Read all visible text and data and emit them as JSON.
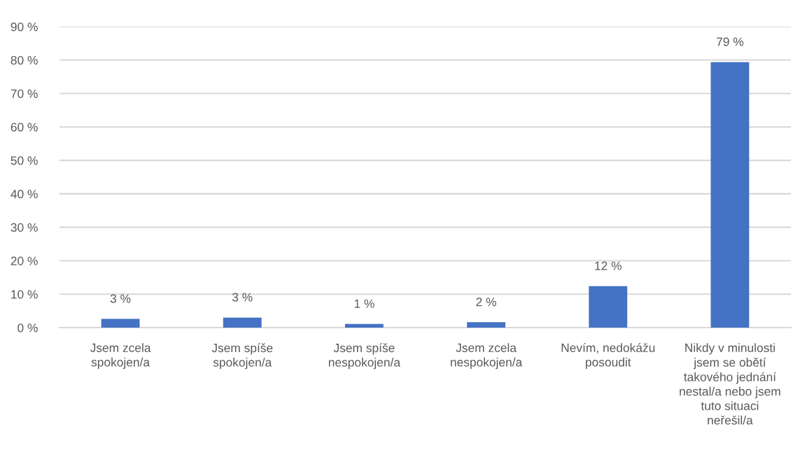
{
  "chart_data": {
    "type": "bar",
    "categories": [
      "Jsem zcela\nspokojen/a",
      "Jsem spíše\nspokojen/a",
      "Jsem spíše\nnespokojen/a",
      "Jsem zcela\nnespokojen/a",
      "Nevím, nedokážu\nposoudit",
      "Nikdy v minulosti\njsem se obětí\ntakového jednání\nnestal/a nebo jsem\ntuto situaci\nneřešil/a"
    ],
    "values": [
      2.6,
      3.0,
      1.1,
      1.6,
      12.4,
      79.4
    ],
    "value_labels": [
      "3 %",
      "3 %",
      "1 %",
      "2 %",
      "12 %",
      "79 %"
    ],
    "color": "#4472c4",
    "ylim": [
      0,
      90
    ],
    "yticks": [
      {
        "value": 0,
        "label": "0 %"
      },
      {
        "value": 10,
        "label": "10 %"
      },
      {
        "value": 20,
        "label": "20 %"
      },
      {
        "value": 30,
        "label": "30 %"
      },
      {
        "value": 40,
        "label": "40 %"
      },
      {
        "value": 50,
        "label": "50 %"
      },
      {
        "value": 60,
        "label": "60 %"
      },
      {
        "value": 70,
        "label": "70 %"
      },
      {
        "value": 80,
        "label": "80 %"
      },
      {
        "value": 90,
        "label": "90 %"
      }
    ],
    "grid": "y",
    "legend": false
  }
}
